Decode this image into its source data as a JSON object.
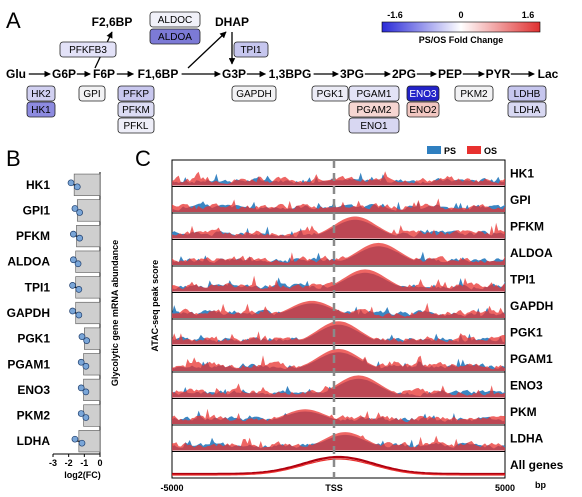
{
  "panels": {
    "a": "A",
    "b": "B",
    "c": "C"
  },
  "legend_a": {
    "min": "-1.6",
    "mid": "0",
    "max": "1.6",
    "title": "PS/OS Fold Change",
    "color_low": "#2a2ad8",
    "color_high": "#e03030"
  },
  "pathway": {
    "metabolites": [
      "Glu",
      "G6P",
      "F6P",
      "F1,6BP",
      "G3P",
      "1,3BPG",
      "3PG",
      "2PG",
      "PEP",
      "PYR",
      "Lac"
    ],
    "top_metabolites": [
      "F2,6BP",
      "DHAP"
    ]
  },
  "enzymes": [
    {
      "label": "PFKFB3",
      "fill": "#e3e2f8"
    },
    {
      "label": "ALDOC",
      "fill": "#f1f1f9"
    },
    {
      "label": "ALDOA",
      "fill": "#7c7ad6"
    },
    {
      "label": "TPI1",
      "fill": "#c6c6ee"
    },
    {
      "label": "HK2",
      "fill": "#d1d0f1"
    },
    {
      "label": "HK1",
      "fill": "#8d8be0"
    },
    {
      "label": "GPI",
      "fill": "#f2f2f4"
    },
    {
      "label": "PFKP",
      "fill": "#c8c7ee"
    },
    {
      "label": "PFKM",
      "fill": "#dcdcf4"
    },
    {
      "label": "PFKL",
      "fill": "#eeeef8"
    },
    {
      "label": "GAPDH",
      "fill": "#f2f2f4"
    },
    {
      "label": "PGK1",
      "fill": "#ececf6"
    },
    {
      "label": "PGAM1",
      "fill": "#e3e3f6"
    },
    {
      "label": "PGAM2",
      "fill": "#f6d6d2"
    },
    {
      "label": "ENO1",
      "fill": "#d8d7f2"
    },
    {
      "label": "ENO3",
      "fill": "#2323c8"
    },
    {
      "label": "ENO2",
      "fill": "#f2c7c1"
    },
    {
      "label": "PKM2",
      "fill": "#f2f2f4"
    },
    {
      "label": "LDHB",
      "fill": "#c6c6ee"
    },
    {
      "label": "LDHA",
      "fill": "#d8d8f2"
    }
  ],
  "chart_b": {
    "type": "bar",
    "ylabel": "Glycolytic gene mRNA abundance",
    "xlabel": "log2(FC)",
    "xlim": [
      -3,
      0
    ],
    "xticks": [
      "-3",
      "-2",
      "-1",
      "0"
    ],
    "categories": [
      "HK1",
      "GPI1",
      "PFKM",
      "ALDOA",
      "TPI1",
      "GAPDH",
      "PGK1",
      "PGAM1",
      "ENO3",
      "PKM2",
      "LDHA"
    ],
    "values": [
      -1.65,
      -1.45,
      -1.5,
      -1.55,
      -1.55,
      -1.55,
      -1.0,
      -1.05,
      -1.05,
      -1.05,
      -1.35
    ],
    "points": [
      [
        -1.85,
        -1.45
      ],
      [
        -1.6,
        -1.3
      ],
      [
        -1.7,
        -1.3
      ],
      [
        -1.7,
        -1.4
      ],
      [
        -1.75,
        -1.35
      ],
      [
        -1.75,
        -1.35
      ],
      [
        -1.15,
        -0.85
      ],
      [
        -1.2,
        -0.9
      ],
      [
        -1.2,
        -0.9
      ],
      [
        -1.2,
        -0.9
      ],
      [
        -1.6,
        -1.15
      ]
    ],
    "bar_color": "#cfcfcf",
    "point_color": "#7aa6d8"
  },
  "chart_c": {
    "type": "area",
    "ylabel": "ATAC-seq peak score",
    "legend": [
      "PS",
      "OS"
    ],
    "colors": {
      "PS": "#2f7fc0",
      "OS": "#e8312f"
    },
    "tracks": [
      "HK1",
      "GPI",
      "PFKM",
      "ALDOA",
      "TPI1",
      "GAPDH",
      "PGK1",
      "PGAM1",
      "ENO3",
      "PKM",
      "LDHA",
      "All genes"
    ],
    "xlim": [
      -5000,
      5000
    ],
    "xtick_labels": [
      "-5000",
      "TSS",
      "5000"
    ],
    "xunit": "bp",
    "peaks": {
      "HK1": {
        "center": 0,
        "height": 0.25
      },
      "GPI": {
        "center": 0,
        "height": 0.2
      },
      "PFKM": {
        "center": 500,
        "height": 0.9
      },
      "ALDOA": {
        "center": 1200,
        "height": 0.9
      },
      "TPI1": {
        "center": 800,
        "height": 0.9
      },
      "GAPDH": {
        "center": -800,
        "height": 0.7
      },
      "PGK1": {
        "center": 0,
        "height": 0.95
      },
      "PGAM1": {
        "center": 0,
        "height": 0.9
      },
      "ENO3": {
        "center": 600,
        "height": 0.9
      },
      "PKM": {
        "center": -1000,
        "height": 0.6
      },
      "LDHA": {
        "center": 200,
        "height": 0.75
      }
    }
  }
}
